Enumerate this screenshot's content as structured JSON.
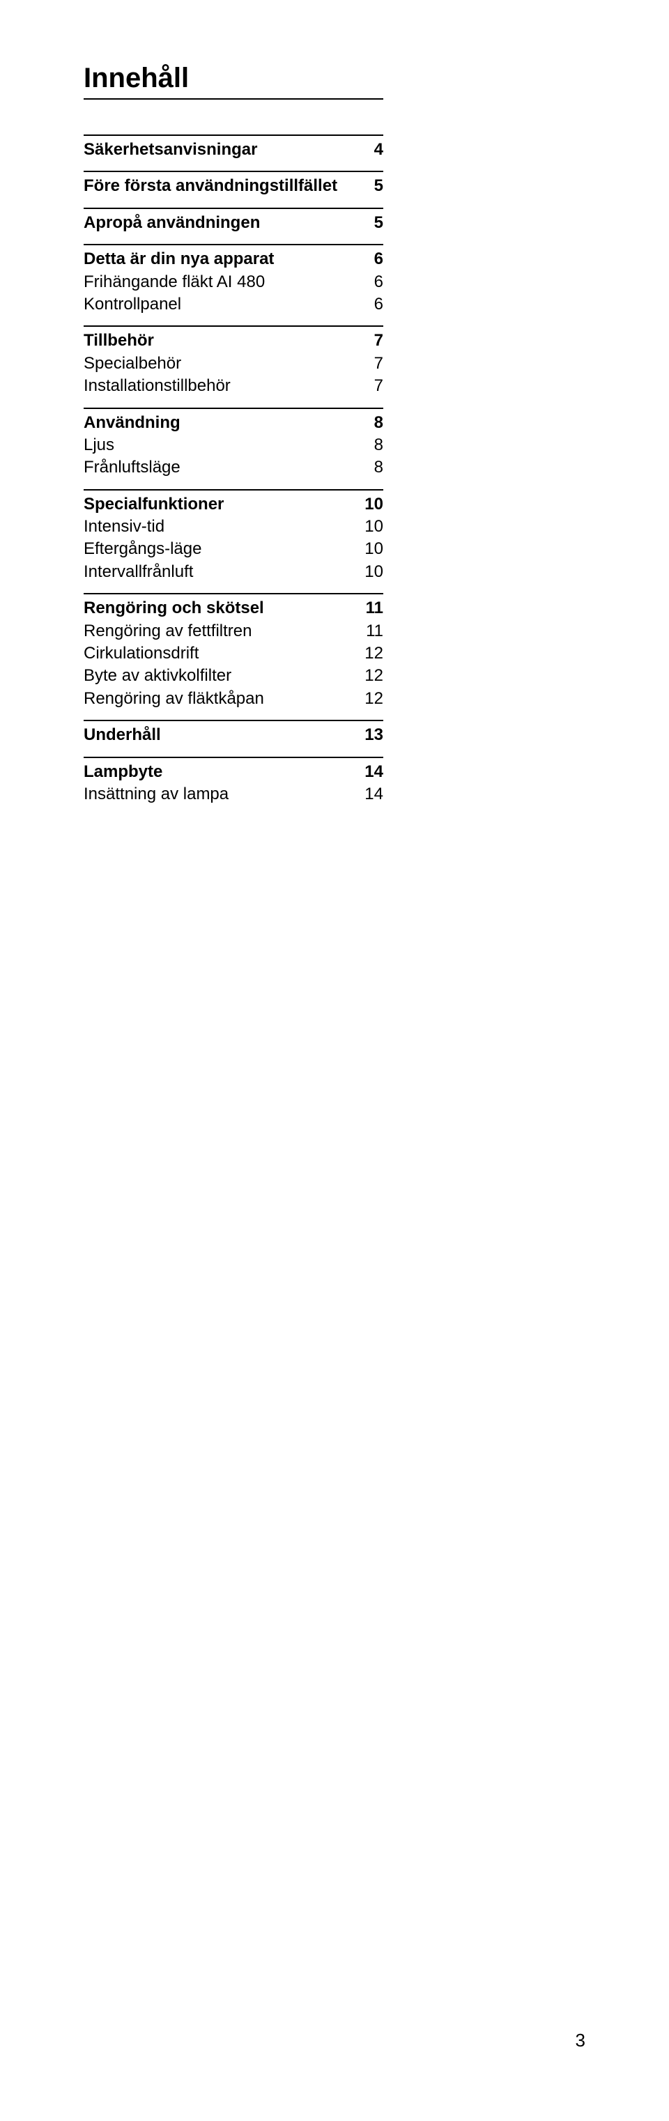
{
  "title": "Innehåll",
  "pageNumber": "3",
  "toc": [
    {
      "label": "Säkerhetsanvisningar",
      "page": "4",
      "bold": true,
      "ruleAbove": true,
      "newSection": true
    },
    {
      "label": "Före första användningstillfället",
      "page": "5",
      "bold": true,
      "ruleAbove": true,
      "newSection": true
    },
    {
      "label": "Apropå användningen",
      "page": "5",
      "bold": true,
      "ruleAbove": true,
      "newSection": true
    },
    {
      "label": "Detta är din nya apparat",
      "page": "6",
      "bold": true,
      "ruleAbove": true,
      "newSection": true
    },
    {
      "label": "Frihängande fläkt AI 480",
      "page": "6",
      "bold": false,
      "ruleAbove": false,
      "newSection": false
    },
    {
      "label": "Kontrollpanel",
      "page": "6",
      "bold": false,
      "ruleAbove": false,
      "newSection": false
    },
    {
      "label": "Tillbehör",
      "page": "7",
      "bold": true,
      "ruleAbove": true,
      "newSection": true
    },
    {
      "label": "Specialbehör",
      "page": "7",
      "bold": false,
      "ruleAbove": false,
      "newSection": false
    },
    {
      "label": "Installationstillbehör",
      "page": "7",
      "bold": false,
      "ruleAbove": false,
      "newSection": false
    },
    {
      "label": "Användning",
      "page": "8",
      "bold": true,
      "ruleAbove": true,
      "newSection": true
    },
    {
      "label": "Ljus",
      "page": "8",
      "bold": false,
      "ruleAbove": false,
      "newSection": false
    },
    {
      "label": "Frånluftsläge",
      "page": "8",
      "bold": false,
      "ruleAbove": false,
      "newSection": false
    },
    {
      "label": "Specialfunktioner",
      "page": "10",
      "bold": true,
      "ruleAbove": true,
      "newSection": true
    },
    {
      "label": "Intensiv-tid",
      "page": "10",
      "bold": false,
      "ruleAbove": false,
      "newSection": false
    },
    {
      "label": "Eftergångs-läge",
      "page": "10",
      "bold": false,
      "ruleAbove": false,
      "newSection": false
    },
    {
      "label": "Intervallfrånluft",
      "page": "10",
      "bold": false,
      "ruleAbove": false,
      "newSection": false
    },
    {
      "label": "Rengöring och skötsel",
      "page": "11",
      "bold": true,
      "ruleAbove": true,
      "newSection": true
    },
    {
      "label": "Rengöring av fettfiltren",
      "page": "11",
      "bold": false,
      "ruleAbove": false,
      "newSection": false
    },
    {
      "label": "Cirkulationsdrift",
      "page": "12",
      "bold": false,
      "ruleAbove": false,
      "newSection": false
    },
    {
      "label": "Byte av aktivkolfilter",
      "page": "12",
      "bold": false,
      "ruleAbove": false,
      "newSection": false
    },
    {
      "label": "Rengöring av fläktkåpan",
      "page": "12",
      "bold": false,
      "ruleAbove": false,
      "newSection": false
    },
    {
      "label": "Underhåll",
      "page": "13",
      "bold": true,
      "ruleAbove": true,
      "newSection": true
    },
    {
      "label": "Lampbyte",
      "page": "14",
      "bold": true,
      "ruleAbove": true,
      "newSection": true
    },
    {
      "label": "Insättning av lampa",
      "page": "14",
      "bold": false,
      "ruleAbove": false,
      "newSection": false
    }
  ]
}
